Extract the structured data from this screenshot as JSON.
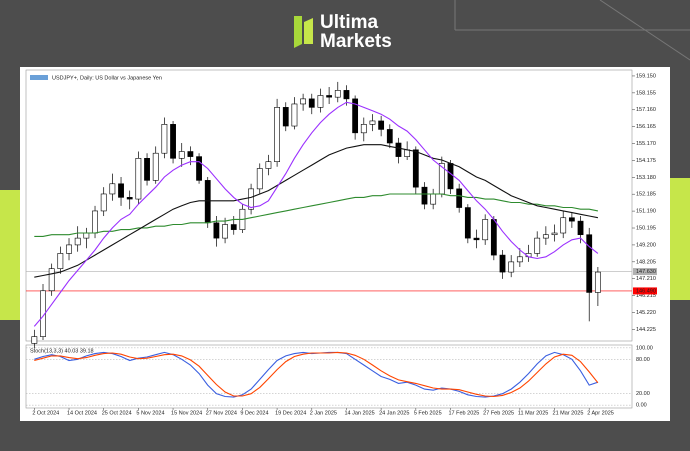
{
  "brand": {
    "line1": "Ultima",
    "line2": "Markets"
  },
  "chart_data": {
    "type": "candlestick",
    "title": "USDJPY+, Daily: US Dollar vs Japanese Yen",
    "categories": [
      "2 Oct 2024",
      null,
      null,
      null,
      "14 Oct 2024",
      null,
      null,
      null,
      "25 Oct 2024",
      null,
      null,
      null,
      "5 Nov 2024",
      null,
      null,
      null,
      "15 Nov 2024",
      null,
      null,
      null,
      "27 Nov 2024",
      null,
      null,
      null,
      "9 Dec 2024",
      null,
      null,
      null,
      "19 Dec 2024",
      null,
      null,
      null,
      "2 Jan 2025",
      null,
      null,
      null,
      "14 Jan 2025",
      null,
      null,
      null,
      "24 Jan 2025",
      null,
      null,
      null,
      "5 Feb 2025",
      null,
      null,
      null,
      "17 Feb 2025",
      null,
      null,
      null,
      "27 Feb 2025",
      null,
      null,
      null,
      "11 Mar 2025",
      null,
      null,
      null,
      "21 Mar 2025",
      null,
      null,
      null,
      "2 Apr 2025",
      null
    ],
    "open": [
      143.4,
      143.8,
      146.5,
      147.8,
      148.7,
      149.2,
      149.6,
      149.9,
      151.2,
      152.2,
      152.8,
      152.0,
      151.9,
      154.3,
      153.0,
      154.6,
      156.3,
      154.3,
      154.7,
      154.4,
      153.0,
      150.5,
      149.6,
      150.4,
      150.1,
      151.3,
      152.5,
      153.7,
      154.1,
      157.3,
      156.2,
      157.5,
      157.8,
      157.3,
      158.0,
      157.9,
      158.3,
      157.8,
      155.8,
      156.3,
      156.5,
      156.0,
      155.2,
      154.4,
      154.8,
      152.6,
      151.6,
      152.2,
      154.0,
      152.5,
      151.4,
      149.6,
      149.5,
      150.7,
      148.6,
      147.6,
      148.2,
      148.5,
      148.7,
      149.6,
      149.8,
      149.9,
      150.8,
      150.6,
      149.8,
      146.4
    ],
    "high": [
      144.2,
      146.9,
      148.1,
      149.1,
      149.6,
      150.3,
      150.2,
      151.5,
      152.6,
      153.4,
      153.2,
      152.4,
      154.7,
      154.6,
      155.0,
      156.7,
      156.5,
      155.2,
      155.0,
      154.6,
      153.2,
      150.9,
      150.8,
      150.9,
      151.6,
      152.8,
      154.0,
      154.5,
      157.8,
      157.6,
      157.9,
      158.1,
      158.1,
      158.4,
      158.5,
      158.8,
      158.6,
      158.0,
      156.7,
      156.9,
      156.8,
      156.3,
      155.5,
      155.3,
      155.0,
      152.9,
      152.5,
      154.4,
      154.2,
      152.8,
      151.6,
      150.1,
      151.0,
      150.9,
      148.9,
      148.6,
      149.0,
      149.2,
      150.0,
      150.3,
      150.4,
      151.2,
      151.1,
      150.9,
      150.2,
      147.9
    ],
    "low": [
      143.1,
      143.6,
      146.2,
      147.5,
      148.3,
      148.8,
      149.0,
      149.6,
      150.9,
      151.8,
      151.5,
      151.3,
      151.6,
      152.7,
      152.8,
      154.3,
      154.0,
      153.8,
      153.9,
      152.8,
      150.2,
      149.1,
      149.3,
      149.8,
      149.9,
      151.0,
      152.2,
      153.3,
      153.8,
      155.9,
      156.0,
      157.1,
      156.9,
      157.0,
      157.5,
      157.6,
      157.4,
      155.4,
      155.3,
      155.9,
      155.6,
      154.9,
      154.0,
      154.2,
      152.2,
      151.3,
      151.3,
      152.0,
      152.2,
      151.1,
      149.3,
      149.0,
      149.2,
      148.3,
      147.2,
      147.3,
      147.9,
      148.2,
      148.5,
      149.2,
      149.4,
      149.6,
      150.2,
      149.3,
      144.7,
      145.6
    ],
    "close": [
      143.8,
      146.5,
      147.8,
      148.7,
      149.2,
      149.6,
      149.9,
      151.2,
      152.2,
      152.8,
      152.0,
      151.9,
      154.3,
      153.0,
      154.6,
      156.3,
      154.3,
      154.7,
      154.4,
      153.0,
      150.5,
      149.6,
      150.4,
      150.1,
      151.3,
      152.5,
      153.7,
      154.1,
      157.3,
      156.2,
      157.5,
      157.8,
      157.3,
      158.0,
      157.9,
      158.3,
      157.8,
      155.8,
      156.3,
      156.5,
      156.0,
      155.2,
      154.4,
      154.8,
      152.6,
      151.6,
      152.2,
      154.0,
      152.5,
      151.4,
      149.6,
      149.5,
      150.7,
      148.6,
      147.6,
      148.2,
      148.5,
      148.7,
      149.6,
      149.8,
      149.9,
      150.8,
      150.6,
      149.8,
      146.4,
      147.6
    ],
    "overlays": [
      {
        "color": "#2e8b2e",
        "values": [
          149.7,
          149.7,
          149.8,
          149.8,
          149.8,
          149.9,
          149.9,
          149.9,
          150.0,
          150.0,
          150.1,
          150.1,
          150.2,
          150.2,
          150.3,
          150.3,
          150.4,
          150.4,
          150.5,
          150.5,
          150.5,
          150.6,
          150.6,
          150.7,
          150.7,
          150.8,
          150.9,
          151.0,
          151.1,
          151.2,
          151.3,
          151.4,
          151.5,
          151.6,
          151.7,
          151.8,
          151.9,
          152.0,
          152.0,
          152.1,
          152.1,
          152.2,
          152.2,
          152.2,
          152.2,
          152.2,
          152.2,
          152.2,
          152.1,
          152.1,
          152.0,
          152.0,
          151.9,
          151.9,
          151.8,
          151.7,
          151.7,
          151.6,
          151.6,
          151.5,
          151.5,
          151.4,
          151.4,
          151.3,
          151.3,
          151.2
        ]
      },
      {
        "color": "#111111",
        "values": [
          147.3,
          147.4,
          147.5,
          147.6,
          147.8,
          148.0,
          148.3,
          148.6,
          148.9,
          149.2,
          149.5,
          149.8,
          150.1,
          150.4,
          150.7,
          151.0,
          151.3,
          151.5,
          151.7,
          151.8,
          151.8,
          151.8,
          151.8,
          151.8,
          151.9,
          152.0,
          152.2,
          152.4,
          152.7,
          153.0,
          153.3,
          153.6,
          153.9,
          154.2,
          154.5,
          154.7,
          154.9,
          155.0,
          155.1,
          155.1,
          155.1,
          155.0,
          154.9,
          154.8,
          154.7,
          154.5,
          154.3,
          154.2,
          154.0,
          153.8,
          153.5,
          153.2,
          153.0,
          152.7,
          152.4,
          152.1,
          151.9,
          151.7,
          151.5,
          151.4,
          151.3,
          151.2,
          151.1,
          151.0,
          150.9,
          150.8
        ]
      },
      {
        "color": "#9b30ff",
        "values": [
          144.4,
          145.0,
          145.7,
          146.4,
          147.1,
          147.7,
          148.3,
          148.9,
          149.6,
          150.2,
          150.7,
          151.0,
          151.6,
          152.1,
          152.6,
          153.2,
          153.6,
          153.9,
          154.1,
          154.1,
          153.7,
          153.1,
          152.5,
          152.0,
          151.6,
          151.4,
          151.5,
          151.8,
          152.6,
          153.4,
          154.3,
          155.1,
          155.8,
          156.4,
          156.9,
          157.3,
          157.6,
          157.5,
          157.3,
          157.1,
          156.9,
          156.6,
          156.2,
          155.9,
          155.4,
          154.8,
          154.2,
          153.8,
          153.4,
          153.0,
          152.4,
          151.8,
          151.3,
          150.7,
          150.0,
          149.4,
          148.9,
          148.5,
          148.4,
          148.5,
          148.8,
          149.2,
          149.5,
          149.6,
          149.1,
          148.7
        ]
      }
    ],
    "hlines": [
      {
        "value": 147.63,
        "label": "147.630",
        "color": "#b0b0b0"
      },
      {
        "value": 146.49,
        "label": "146.490",
        "color": "#ff0000"
      }
    ],
    "ylim": [
      143.6,
      159.5
    ],
    "yticks": [
      {
        "value": 159.15,
        "label": "159.150"
      },
      {
        "value": 158.155,
        "label": "158.155"
      },
      {
        "value": 157.16,
        "label": "157.160"
      },
      {
        "value": 156.165,
        "label": "156.165"
      },
      {
        "value": 155.17,
        "label": "155.170"
      },
      {
        "value": 154.175,
        "label": "154.175"
      },
      {
        "value": 153.18,
        "label": "153.180"
      },
      {
        "value": 152.185,
        "label": "152.185"
      },
      {
        "value": 151.19,
        "label": "151.190"
      },
      {
        "value": 150.195,
        "label": "150.195"
      },
      {
        "value": 149.2,
        "label": "149.200"
      },
      {
        "value": 148.205,
        "label": "148.205"
      },
      {
        "value": 147.21,
        "label": "147.210"
      },
      {
        "value": 146.215,
        "label": "146.215"
      },
      {
        "value": 145.22,
        "label": "145.220"
      },
      {
        "value": 144.225,
        "label": "144.225"
      }
    ],
    "indicator": {
      "title": "Stoch(13,3,3) 40.03 39.18",
      "ylim": [
        -5,
        105
      ],
      "yticks": [
        {
          "value": 100,
          "label": "100.00"
        },
        {
          "value": 80,
          "label": "80.00"
        },
        {
          "value": 20,
          "label": "20.00"
        },
        {
          "value": 0,
          "label": "0.00"
        }
      ],
      "series": [
        {
          "color": "#3a5fe0",
          "values": [
            80,
            85,
            88,
            85,
            78,
            80,
            86,
            90,
            92,
            90,
            85,
            78,
            82,
            84,
            88,
            92,
            88,
            80,
            70,
            55,
            35,
            20,
            15,
            14,
            18,
            28,
            45,
            62,
            78,
            86,
            90,
            92,
            90,
            91,
            92,
            92,
            90,
            80,
            70,
            60,
            50,
            45,
            38,
            40,
            35,
            28,
            26,
            30,
            28,
            24,
            18,
            15,
            14,
            16,
            20,
            28,
            40,
            55,
            72,
            86,
            92,
            88,
            80,
            60,
            35,
            40
          ]
        },
        {
          "color": "#ff4500",
          "values": [
            78,
            82,
            86,
            86,
            83,
            81,
            83,
            87,
            90,
            91,
            89,
            84,
            81,
            82,
            85,
            88,
            89,
            86,
            79,
            68,
            52,
            36,
            23,
            16,
            16,
            20,
            31,
            46,
            62,
            76,
            85,
            89,
            91,
            91,
            91,
            92,
            91,
            87,
            80,
            70,
            60,
            51,
            44,
            41,
            38,
            34,
            30,
            28,
            28,
            27,
            23,
            19,
            16,
            15,
            17,
            22,
            30,
            42,
            57,
            72,
            84,
            89,
            87,
            76,
            58,
            39
          ]
        }
      ]
    }
  }
}
